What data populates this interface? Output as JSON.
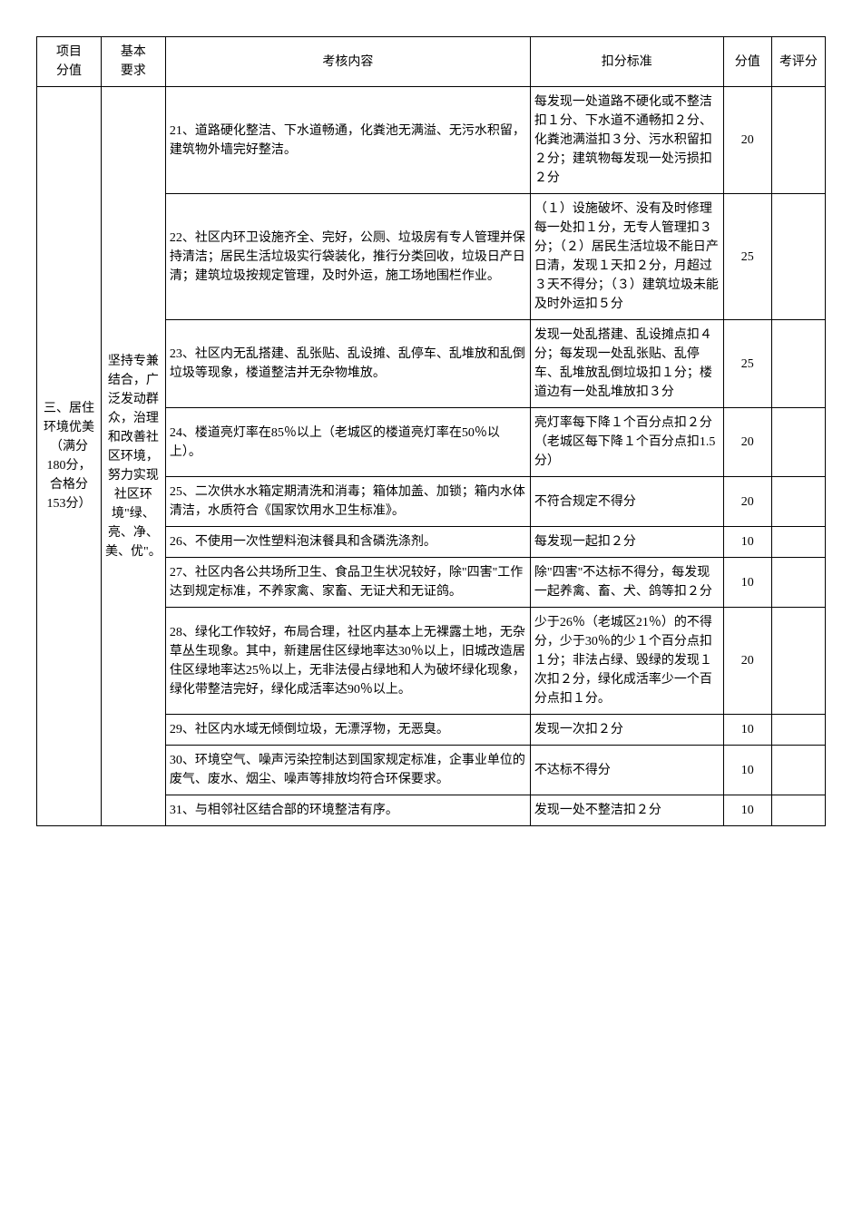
{
  "headers": {
    "col1": "项目\n分值",
    "col2": "基本\n要求",
    "col3": "考核内容",
    "col4": "扣分标准",
    "col5": "分值",
    "col6": "考评分"
  },
  "project_label": "三、居住环境优美（满分180分，合格分153分）",
  "basic_req": "坚持专兼结合，广泛发动群众，治理和改善社区环境，努力实现社区环境\"绿、亮、净、美、优\"。",
  "rows": [
    {
      "content": "21、道路硬化整洁、下水道畅通，化粪池无满溢、无污水积留，建筑物外墙完好整洁。",
      "standard": "每发现一处道路不硬化或不整洁扣１分、下水道不通畅扣２分、化粪池满溢扣３分、污水积留扣２分；建筑物每发现一处污损扣２分",
      "score": "20"
    },
    {
      "content": "22、社区内环卫设施齐全、完好，公厕、垃圾房有专人管理并保持清洁；居民生活垃圾实行袋装化，推行分类回收，垃圾日产日清；建筑垃圾按规定管理，及时外运，施工场地围栏作业。",
      "standard": "（１）设施破坏、没有及时修理每一处扣１分，无专人管理扣３分；（２）居民生活垃圾不能日产日清，发现１天扣２分，月超过３天不得分；（３）建筑垃圾未能及时外运扣５分",
      "score": "25"
    },
    {
      "content": "23、社区内无乱搭建、乱张贴、乱设摊、乱停车、乱堆放和乱倒垃圾等现象，楼道整洁并无杂物堆放。",
      "standard": "发现一处乱搭建、乱设摊点扣４分；每发现一处乱张贴、乱停车、乱堆放乱倒垃圾扣１分；楼道边有一处乱堆放扣３分",
      "score": "25"
    },
    {
      "content": "24、楼道亮灯率在85％以上（老城区的楼道亮灯率在50％以上）。",
      "standard": "亮灯率每下降１个百分点扣２分（老城区每下降１个百分点扣1.5分）",
      "score": "20"
    },
    {
      "content": "25、二次供水水箱定期清洗和消毒；箱体加盖、加锁；箱内水体清洁，水质符合《国家饮用水卫生标准》。",
      "standard": "不符合规定不得分",
      "score": "20"
    },
    {
      "content": "26、不使用一次性塑料泡沫餐具和含磷洗涤剂。",
      "standard": "每发现一起扣２分",
      "score": "10"
    },
    {
      "content": "27、社区内各公共场所卫生、食品卫生状况较好，除\"四害\"工作达到规定标准，不养家禽、家畜、无证犬和无证鸽。",
      "standard": "除\"四害\"不达标不得分，每发现一起养禽、畜、犬、鸽等扣２分",
      "score": "10"
    },
    {
      "content": "28、绿化工作较好，布局合理，社区内基本上无裸露土地，无杂草丛生现象。其中，新建居住区绿地率达30％以上，旧城改造居住区绿地率达25％以上，无非法侵占绿地和人为破坏绿化现象，绿化带整洁完好，绿化成活率达90％以上。",
      "standard": "少于26％（老城区21％）的不得分，少于30％的少１个百分点扣１分；非法占绿、毁绿的发现１次扣２分，绿化成活率少一个百分点扣１分。",
      "score": "20"
    },
    {
      "content": "29、社区内水域无倾倒垃圾，无漂浮物，无恶臭。",
      "standard": "发现一次扣２分",
      "score": "10"
    },
    {
      "content": "30、环境空气、噪声污染控制达到国家规定标准，企事业单位的废气、废水、烟尘、噪声等排放均符合环保要求。",
      "standard": "不达标不得分",
      "score": "10"
    },
    {
      "content": "31、与相邻社区结合部的环境整洁有序。",
      "standard": "发现一处不整洁扣２分",
      "score": "10"
    }
  ]
}
